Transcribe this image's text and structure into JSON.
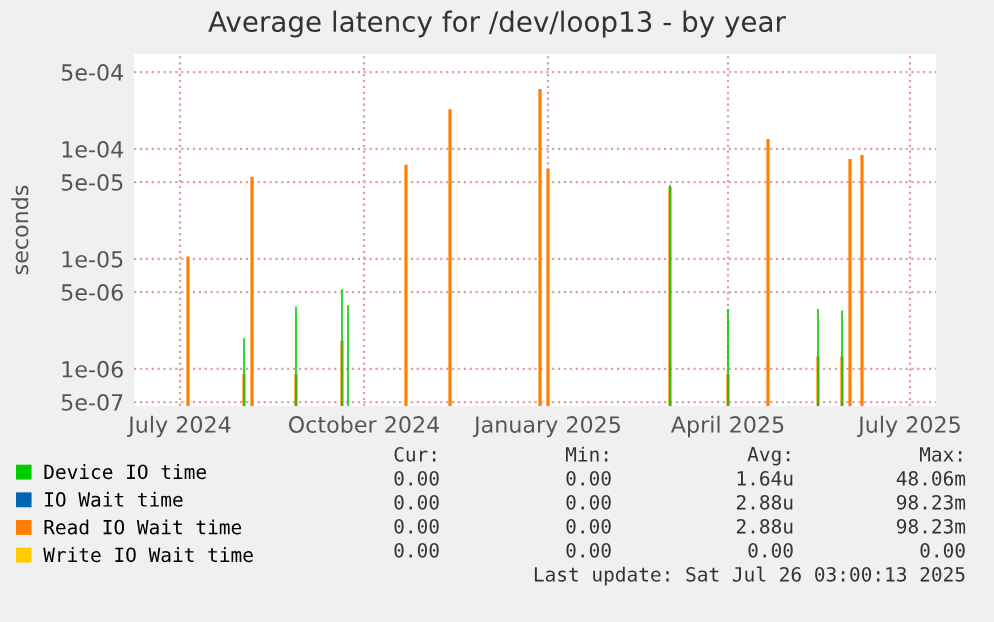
{
  "chart_data": {
    "type": "bar",
    "title": "Average latency for /dev/loop13 - by year",
    "ylabel": "seconds",
    "log": "y",
    "grid": true,
    "legend": "bottom",
    "xlim": [
      "2024-06-23",
      "2025-07-29"
    ],
    "xticks": [
      {
        "value": "2024-07-16",
        "label": "July 2024"
      },
      {
        "value": "2024-10-16",
        "label": "October 2024"
      },
      {
        "value": "2025-01-16",
        "label": "January 2025"
      },
      {
        "value": "2025-04-16",
        "label": "April 2025"
      },
      {
        "value": "2025-07-16",
        "label": "July 2025"
      }
    ],
    "ylim": [
      4.6e-07,
      0.00073
    ],
    "yticks": [
      {
        "value": 5e-07,
        "label": "5e-07"
      },
      {
        "value": 1e-06,
        "label": "1e-06"
      },
      {
        "value": 5e-06,
        "label": "5e-06"
      },
      {
        "value": 1e-05,
        "label": "1e-05"
      },
      {
        "value": 5e-05,
        "label": "5e-05"
      },
      {
        "value": 0.0001,
        "label": "1e-04"
      },
      {
        "value": 0.0005,
        "label": "5e-04"
      }
    ],
    "series": [
      {
        "name": "Device IO time",
        "color": "#00cc00",
        "x": [
          "2024-08-17",
          "2024-09-12",
          "2024-10-05",
          "2024-10-08",
          "2025-03-18",
          "2025-04-16",
          "2025-05-31",
          "2025-06-12"
        ],
        "values": [
          1.9e-06,
          3.7e-06,
          5.3e-06,
          3.8e-06,
          4.7e-05,
          3.5e-06,
          3.5e-06,
          3.4e-06
        ]
      },
      {
        "name": "IO Wait time",
        "color": "#0066b3"
      },
      {
        "name": "Read IO Wait time",
        "color": "#ff8000",
        "x": [
          "2024-07-20",
          "2024-08-17",
          "2024-08-21",
          "2024-09-12",
          "2024-10-05",
          "2024-11-06",
          "2024-11-28",
          "2025-01-12",
          "2025-01-16",
          "2025-03-18",
          "2025-04-16",
          "2025-05-06",
          "2025-05-31",
          "2025-06-12",
          "2025-06-16",
          "2025-06-22"
        ],
        "values": [
          1.05e-05,
          9e-07,
          5.6e-05,
          9e-07,
          1.8e-06,
          7.2e-05,
          0.00023,
          0.00035,
          6.6e-05,
          4.5e-05,
          9e-07,
          0.000123,
          1.3e-06,
          1.3e-06,
          8.1e-05,
          8.8e-05
        ]
      },
      {
        "name": "Write IO Wait time",
        "color": "#ffcc00"
      }
    ],
    "annotations": [
      "Cur:",
      "Min:",
      "Avg:",
      "Max:",
      "0.00",
      "0.00",
      "1.64u",
      "48.06m",
      "0.00",
      "0.00",
      "2.88u",
      "98.23m",
      "0.00",
      "0.00",
      "2.88u",
      "98.23m",
      "0.00",
      "0.00",
      "0.00",
      "0.00",
      "Last update: Sat Jul 26 03:00:13 2025"
    ]
  }
}
